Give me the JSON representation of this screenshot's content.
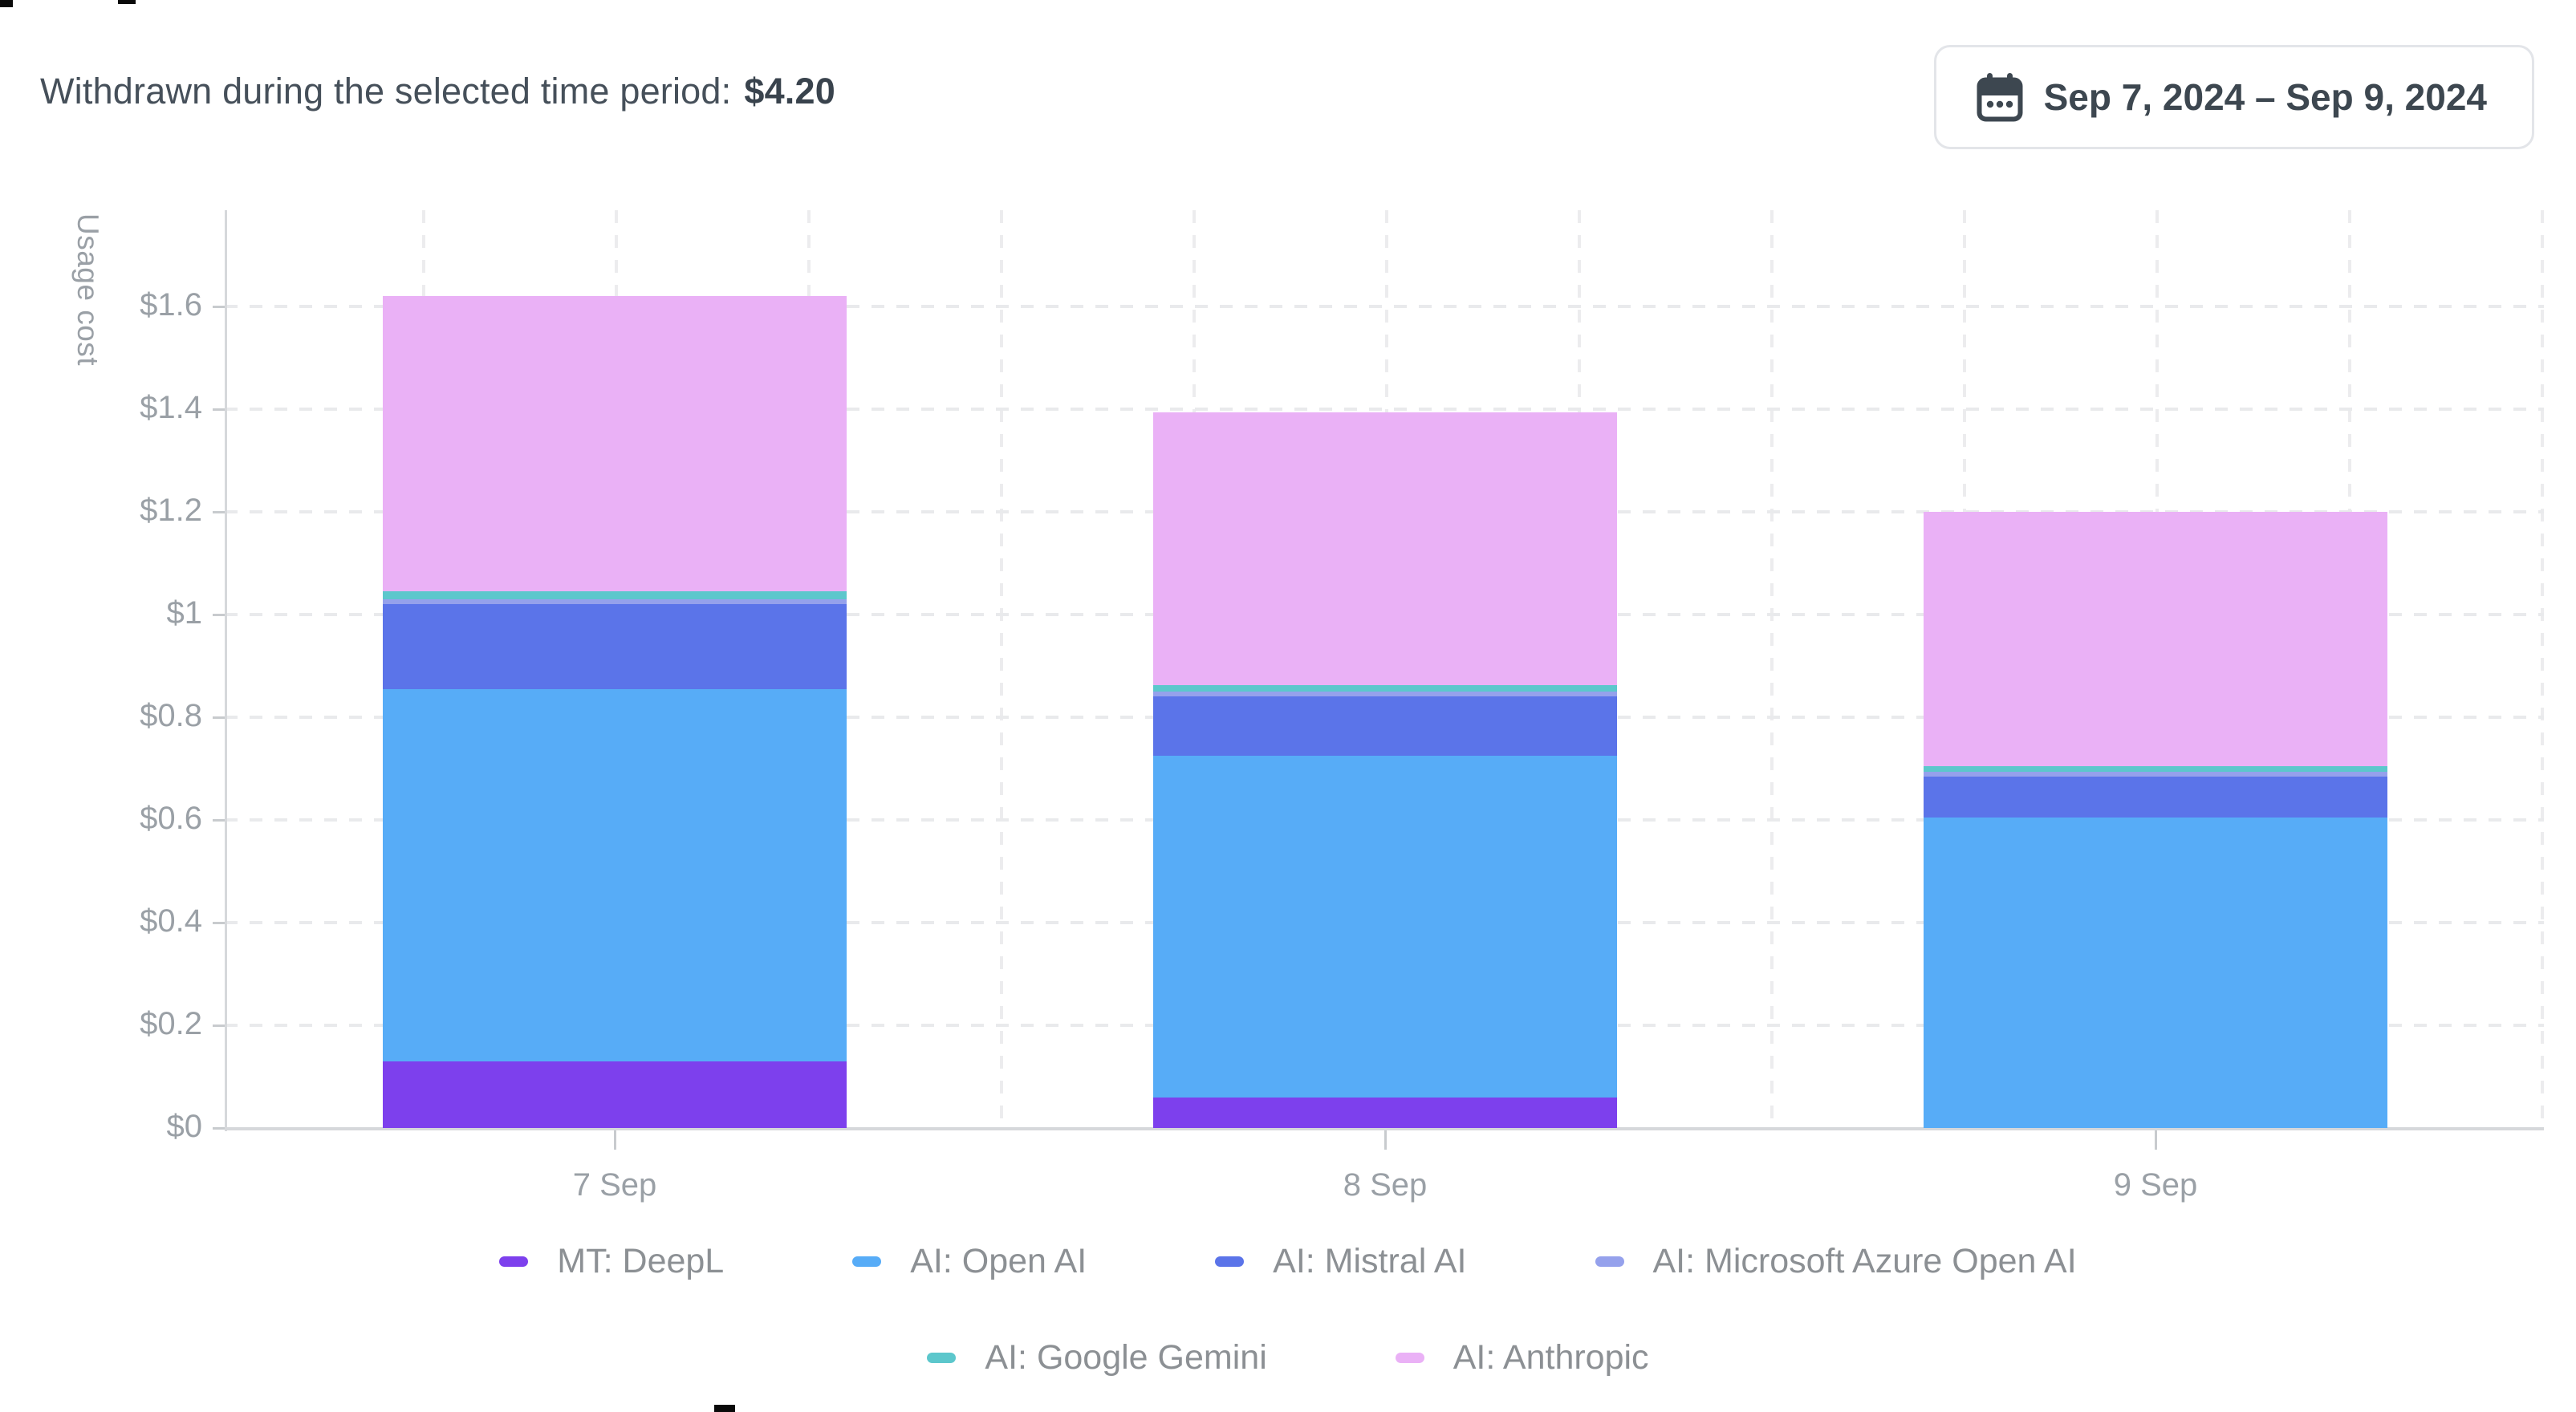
{
  "header": {
    "summary_label": "Withdrawn during the selected time period:",
    "summary_value": "$4.20",
    "date_range": "Sep 7, 2024 – Sep 9, 2024"
  },
  "chart_data": {
    "type": "bar",
    "stacked": true,
    "title": "",
    "xlabel": "",
    "ylabel": "Usage cost",
    "categories": [
      "7 Sep",
      "8 Sep",
      "9 Sep"
    ],
    "series": [
      {
        "name": "MT: DeepL",
        "color": "#7d40ed",
        "values": [
          0.13,
          0.06,
          0
        ]
      },
      {
        "name": "AI: Open AI",
        "color": "#57acf7",
        "values": [
          0.725,
          0.665,
          0.605
        ]
      },
      {
        "name": "AI: Mistral AI",
        "color": "#5b74e9",
        "values": [
          0.165,
          0.115,
          0.08
        ]
      },
      {
        "name": "AI: Microsoft Azure Open AI",
        "color": "#95a1ec",
        "values": [
          0.01,
          0.01,
          0.009
        ]
      },
      {
        "name": "AI: Google Gemini",
        "color": "#5cc7cc",
        "values": [
          0.015,
          0.013,
          0.011
        ]
      },
      {
        "name": "AI: Anthropic",
        "color": "#eab1f6",
        "values": [
          0.575,
          0.53,
          0.495
        ]
      }
    ],
    "bar_totals": [
      1.62,
      1.39,
      1.2
    ],
    "y_ticks": [
      {
        "label": "$0",
        "value": 0
      },
      {
        "label": "$0.2",
        "value": 0.2
      },
      {
        "label": "$0.4",
        "value": 0.4
      },
      {
        "label": "$0.6",
        "value": 0.6
      },
      {
        "label": "$0.8",
        "value": 0.8
      },
      {
        "label": "$1",
        "value": 1.0
      },
      {
        "label": "$1.2",
        "value": 1.2
      },
      {
        "label": "$1.4",
        "value": 1.4
      },
      {
        "label": "$1.6",
        "value": 1.6
      }
    ],
    "ylim": [
      0,
      1.79
    ],
    "grid": "dashed horizontal and vertical, light gray",
    "legend_position": "bottom",
    "legend_rows": [
      [
        "MT: DeepL",
        "AI: Open AI",
        "AI: Mistral AI",
        "AI: Microsoft Azure Open AI"
      ],
      [
        "AI: Google Gemini",
        "AI: Anthropic"
      ]
    ]
  },
  "colors": {
    "header_text": "#46505a",
    "header_value": "#39434d",
    "button_border": "#e3e5e9",
    "button_text": "#3d4750",
    "axis_text": "#9aa0a6",
    "legend_text": "#8c9094",
    "gridline": "#e9eaec",
    "axis_line": "#d6d8db"
  }
}
